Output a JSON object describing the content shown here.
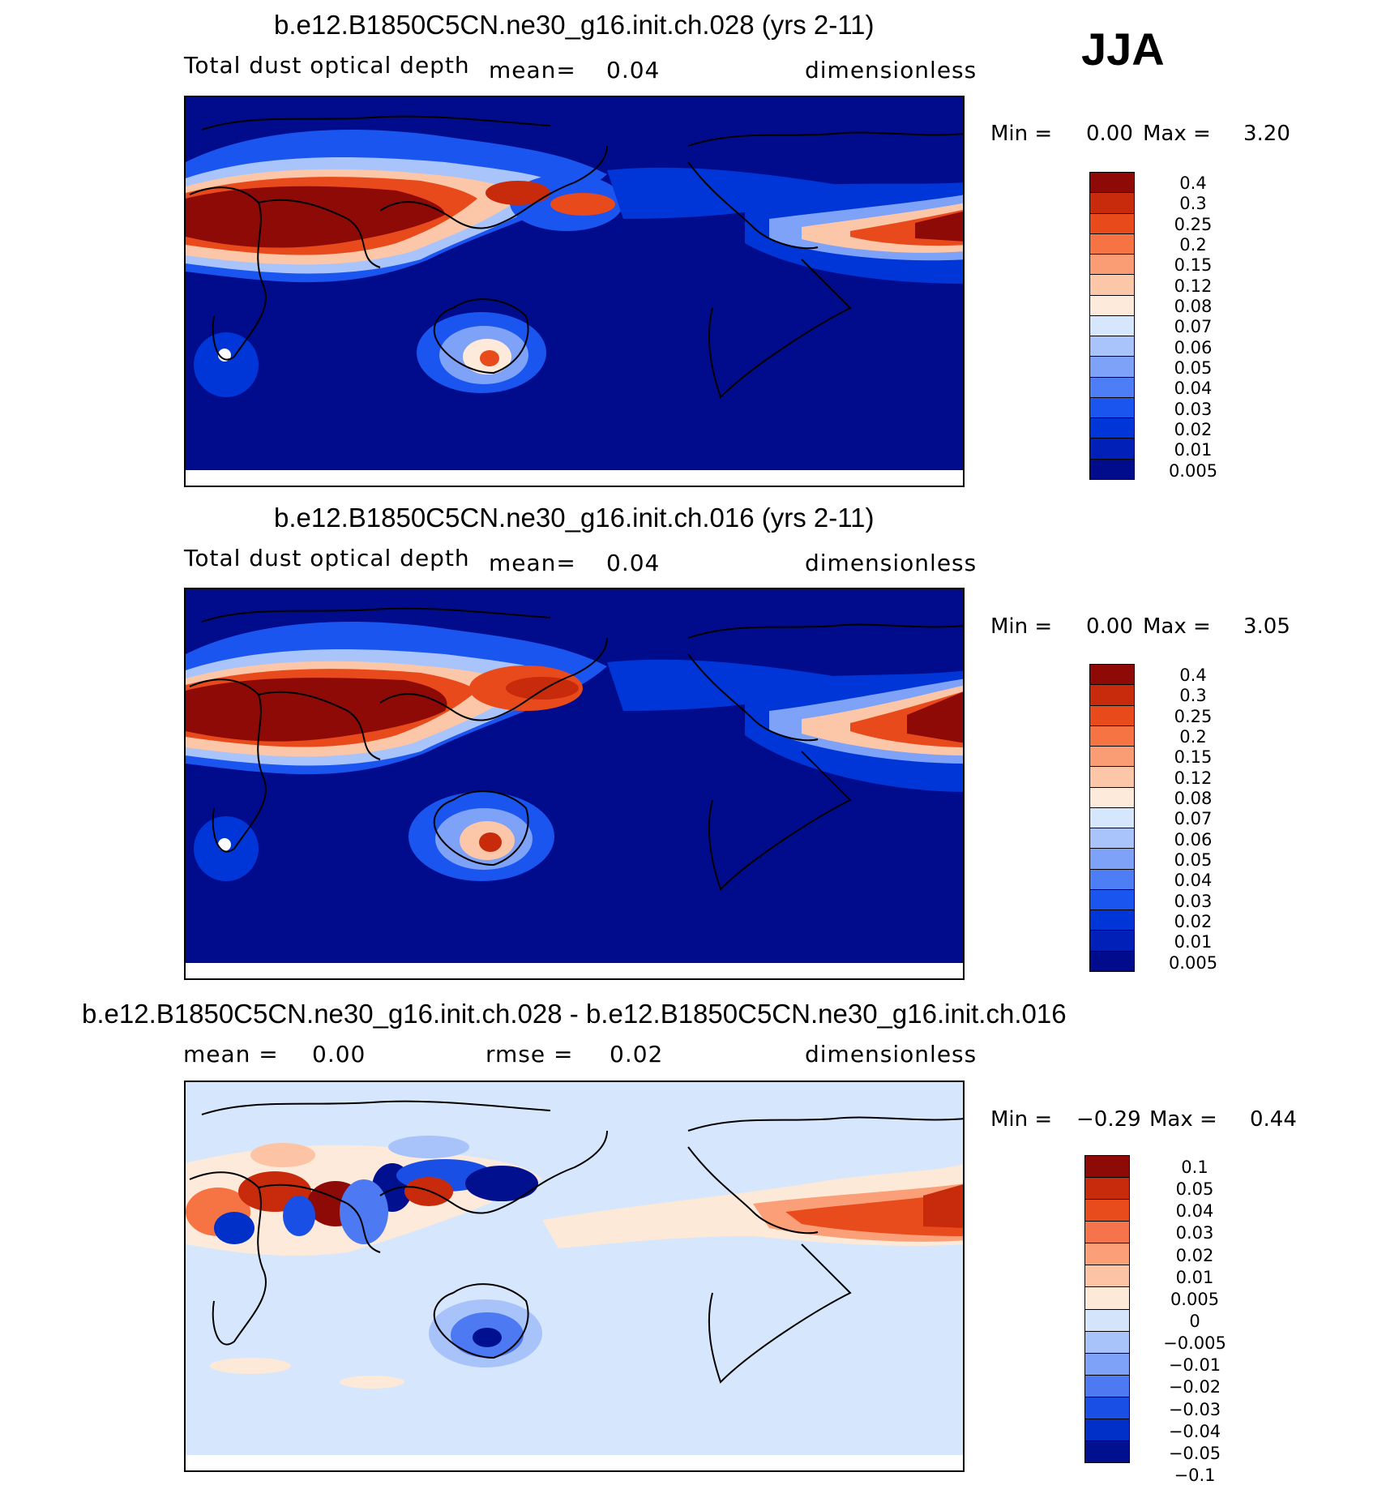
{
  "season": "JJA",
  "colors": {
    "abs_scale": [
      "#000c8c",
      "#0020b8",
      "#0036d8",
      "#1a55f0",
      "#4d7ef6",
      "#7ea2f8",
      "#a8c4fb",
      "#d6e6fc",
      "#fdeadb",
      "#fcc7a8",
      "#fb9d74",
      "#f67444",
      "#e94a1c",
      "#c82a0c",
      "#8e0a06"
    ],
    "diff_scale": [
      "#00108e",
      "#0030c8",
      "#1a4fe6",
      "#4d79f2",
      "#7ea2f7",
      "#a8c3fa",
      "#d4e4fb",
      "#fde9d8",
      "#fcc4a4",
      "#fb9f78",
      "#f5744b",
      "#e94c1c",
      "#c82a0c",
      "#8e0a06"
    ],
    "ocean_abs": "#000c8c",
    "ocean_diff": "#d6e6fc"
  },
  "panels": [
    {
      "title": "b.e12.B1850C5CN.ne30_g16.init.ch.028 (yrs 2-11)",
      "left_label": "Total dust optical depth",
      "center_label": "mean=",
      "center_value": "0.04",
      "units": "dimensionless",
      "min_label": "Min =",
      "min_value": "0.00",
      "max_label": "Max =",
      "max_value": "3.20",
      "colorbar_labels": [
        "0.4",
        "0.3",
        "0.25",
        "0.2",
        "0.15",
        "0.12",
        "0.08",
        "0.07",
        "0.06",
        "0.05",
        "0.04",
        "0.03",
        "0.02",
        "0.01",
        "0.005"
      ]
    },
    {
      "title": "b.e12.B1850C5CN.ne30_g16.init.ch.016 (yrs 2-11)",
      "left_label": "Total dust optical depth",
      "center_label": "mean=",
      "center_value": "0.04",
      "units": "dimensionless",
      "min_label": "Min =",
      "min_value": "0.00",
      "max_label": "Max =",
      "max_value": "3.05",
      "colorbar_labels": [
        "0.4",
        "0.3",
        "0.25",
        "0.2",
        "0.15",
        "0.12",
        "0.08",
        "0.07",
        "0.06",
        "0.05",
        "0.04",
        "0.03",
        "0.02",
        "0.01",
        "0.005"
      ]
    },
    {
      "title": "b.e12.B1850C5CN.ne30_g16.init.ch.028 - b.e12.B1850C5CN.ne30_g16.init.ch.016",
      "left_label": "mean =",
      "left_value": "0.00",
      "center_label": "rmse =",
      "center_value": "0.02",
      "units": "dimensionless",
      "min_label": "Min =",
      "min_value": "−0.29",
      "max_label": "Max =",
      "max_value": "0.44",
      "colorbar_labels": [
        "0.1",
        "0.05",
        "0.04",
        "0.03",
        "0.02",
        "0.01",
        "0.005",
        "0",
        "−0.005",
        "−0.01",
        "−0.02",
        "−0.03",
        "−0.04",
        "−0.05",
        "−0.1"
      ]
    }
  ]
}
